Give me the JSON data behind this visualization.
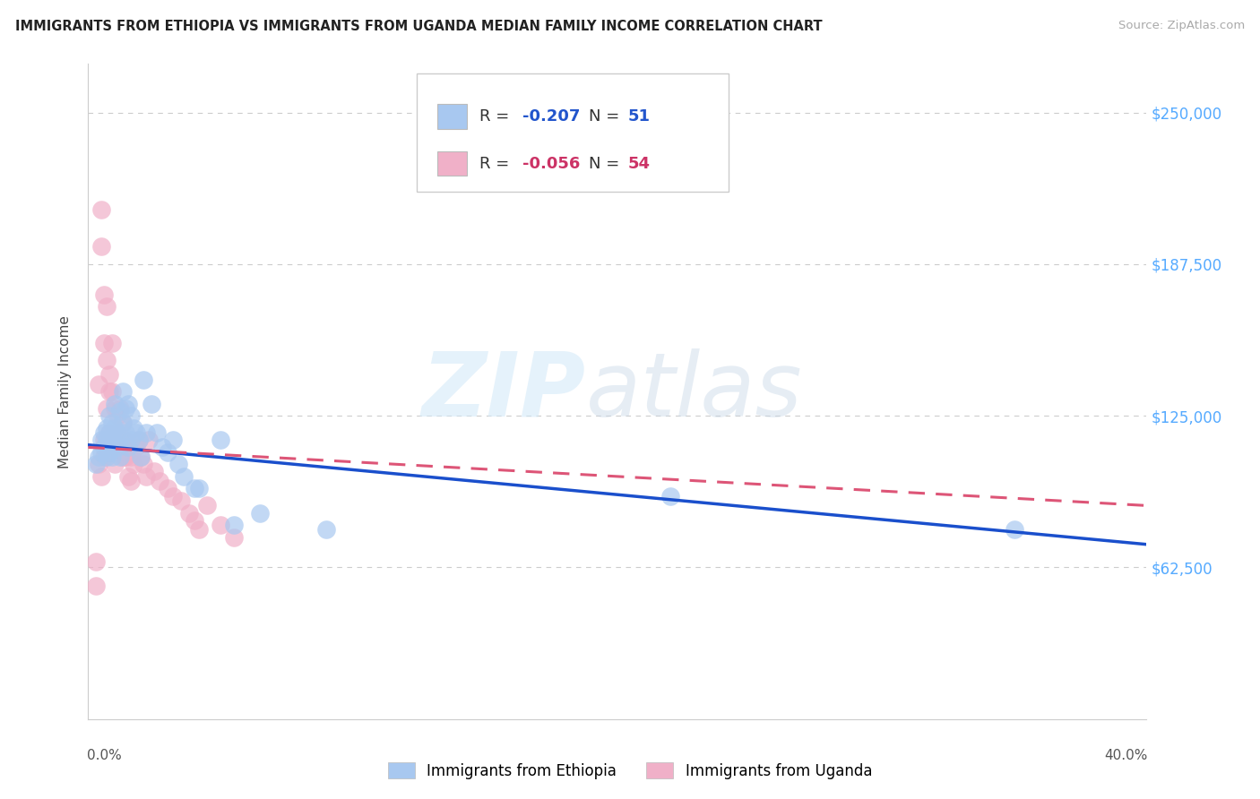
{
  "title": "IMMIGRANTS FROM ETHIOPIA VS IMMIGRANTS FROM UGANDA MEDIAN FAMILY INCOME CORRELATION CHART",
  "source": "Source: ZipAtlas.com",
  "ylabel": "Median Family Income",
  "xlim": [
    0.0,
    0.4
  ],
  "ylim": [
    0,
    270000
  ],
  "ytick_vals": [
    0,
    62500,
    125000,
    187500,
    250000
  ],
  "ytick_labels_right": [
    "",
    "$62,500",
    "$125,000",
    "$187,500",
    "$250,000"
  ],
  "xtick_vals": [
    0.0,
    0.1,
    0.2,
    0.3,
    0.4
  ],
  "color_ethiopia": "#a8c8f0",
  "color_uganda": "#f0b0c8",
  "line_color_ethiopia": "#1a4fcc",
  "line_color_uganda": "#dd5577",
  "legend1_R": "-0.207",
  "legend1_N": "51",
  "legend2_R": "-0.056",
  "legend2_N": "54",
  "watermark_zip": "ZIP",
  "watermark_atlas": "atlas",
  "eth_x": [
    0.003,
    0.004,
    0.005,
    0.005,
    0.006,
    0.006,
    0.007,
    0.007,
    0.007,
    0.008,
    0.008,
    0.008,
    0.009,
    0.009,
    0.009,
    0.01,
    0.01,
    0.011,
    0.011,
    0.012,
    0.012,
    0.012,
    0.013,
    0.013,
    0.014,
    0.014,
    0.015,
    0.015,
    0.016,
    0.016,
    0.017,
    0.018,
    0.019,
    0.02,
    0.021,
    0.022,
    0.024,
    0.026,
    0.028,
    0.03,
    0.032,
    0.034,
    0.036,
    0.04,
    0.042,
    0.05,
    0.055,
    0.065,
    0.09,
    0.22,
    0.35
  ],
  "eth_y": [
    105000,
    108000,
    110000,
    115000,
    118000,
    112000,
    120000,
    115000,
    108000,
    125000,
    118000,
    110000,
    122000,
    116000,
    108000,
    130000,
    120000,
    118000,
    112000,
    127000,
    115000,
    108000,
    135000,
    122000,
    128000,
    118000,
    130000,
    112000,
    125000,
    115000,
    120000,
    118000,
    115000,
    108000,
    140000,
    118000,
    130000,
    118000,
    112000,
    110000,
    115000,
    105000,
    100000,
    95000,
    95000,
    115000,
    80000,
    85000,
    78000,
    92000,
    78000
  ],
  "uga_x": [
    0.003,
    0.003,
    0.004,
    0.004,
    0.005,
    0.005,
    0.005,
    0.006,
    0.006,
    0.006,
    0.006,
    0.007,
    0.007,
    0.007,
    0.008,
    0.008,
    0.008,
    0.008,
    0.009,
    0.009,
    0.009,
    0.01,
    0.01,
    0.01,
    0.011,
    0.011,
    0.012,
    0.012,
    0.013,
    0.013,
    0.014,
    0.014,
    0.015,
    0.015,
    0.016,
    0.016,
    0.017,
    0.018,
    0.019,
    0.02,
    0.021,
    0.022,
    0.023,
    0.025,
    0.027,
    0.03,
    0.032,
    0.035,
    0.038,
    0.04,
    0.042,
    0.045,
    0.05,
    0.055
  ],
  "uga_y": [
    65000,
    55000,
    138000,
    105000,
    210000,
    195000,
    100000,
    175000,
    155000,
    115000,
    108000,
    170000,
    148000,
    128000,
    142000,
    135000,
    118000,
    110000,
    155000,
    135000,
    115000,
    128000,
    115000,
    105000,
    125000,
    112000,
    128000,
    115000,
    122000,
    108000,
    115000,
    108000,
    112000,
    100000,
    108000,
    98000,
    105000,
    112000,
    115000,
    108000,
    105000,
    100000,
    115000,
    102000,
    98000,
    95000,
    92000,
    90000,
    85000,
    82000,
    78000,
    88000,
    80000,
    75000
  ],
  "eth_line_x0": 0.0,
  "eth_line_y0": 113000,
  "eth_line_x1": 0.4,
  "eth_line_y1": 72000,
  "uga_line_x0": 0.0,
  "uga_line_y0": 112000,
  "uga_line_x1": 0.4,
  "uga_line_y1": 88000
}
